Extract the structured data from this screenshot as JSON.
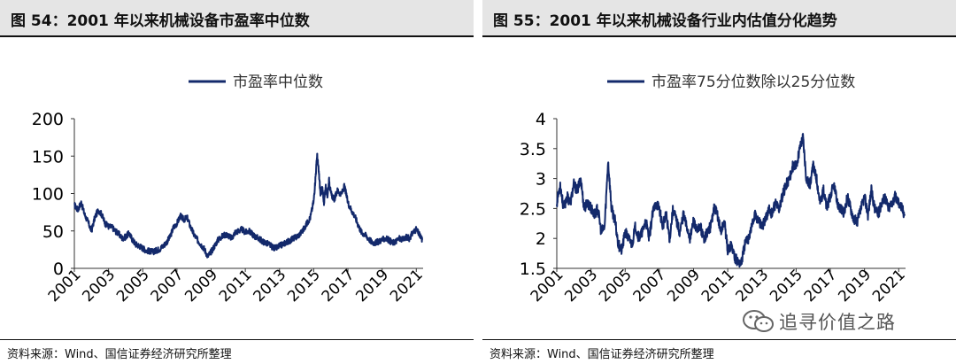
{
  "left": {
    "title": "图 54：2001 年以来机械设备市盈率中位数",
    "source": "资料来源：Wind、国信证券经济研究所整理"
  },
  "right": {
    "title": "图 55：2001 年以来机械设备行业内估值分化趋势",
    "source": "资料来源：Wind、国信证券经济研究所整理"
  },
  "watermark": {
    "text": "追寻价值之路",
    "icon": "wechat-icon"
  },
  "line_color": "#13296b",
  "chart_data": [
    {
      "type": "line",
      "legend_position": "top-center",
      "grid": false,
      "ylim": [
        0,
        200
      ],
      "yticks": [
        0,
        50,
        100,
        150,
        200
      ],
      "xlim": [
        2001,
        2021.4
      ],
      "xticks": [
        "2001",
        "2003",
        "2005",
        "2007",
        "2009",
        "2011",
        "2013",
        "2015",
        "2017",
        "2019",
        "2021"
      ],
      "series": [
        {
          "name": "市盈率中位数",
          "x": [
            2001.0,
            2001.2,
            2001.4,
            2001.6,
            2001.8,
            2002.0,
            2002.2,
            2002.4,
            2002.6,
            2002.8,
            2003.0,
            2003.2,
            2003.4,
            2003.6,
            2003.8,
            2004.0,
            2004.2,
            2004.4,
            2004.6,
            2004.8,
            2005.0,
            2005.2,
            2005.4,
            2005.6,
            2005.8,
            2006.0,
            2006.2,
            2006.4,
            2006.6,
            2006.8,
            2007.0,
            2007.2,
            2007.4,
            2007.6,
            2007.8,
            2008.0,
            2008.2,
            2008.4,
            2008.6,
            2008.8,
            2009.0,
            2009.2,
            2009.4,
            2009.6,
            2009.8,
            2010.0,
            2010.2,
            2010.4,
            2010.6,
            2010.8,
            2011.0,
            2011.2,
            2011.4,
            2011.6,
            2011.8,
            2012.0,
            2012.2,
            2012.4,
            2012.6,
            2012.8,
            2013.0,
            2013.2,
            2013.4,
            2013.6,
            2013.8,
            2014.0,
            2014.2,
            2014.4,
            2014.6,
            2014.8,
            2015.0,
            2015.1,
            2015.2,
            2015.3,
            2015.4,
            2015.5,
            2015.6,
            2015.7,
            2015.8,
            2015.9,
            2016.0,
            2016.2,
            2016.4,
            2016.6,
            2016.8,
            2017.0,
            2017.2,
            2017.4,
            2017.6,
            2017.8,
            2018.0,
            2018.2,
            2018.4,
            2018.6,
            2018.8,
            2019.0,
            2019.2,
            2019.4,
            2019.6,
            2019.8,
            2020.0,
            2020.2,
            2020.4,
            2020.6,
            2020.8,
            2021.0,
            2021.2,
            2021.35
          ],
          "values": [
            85,
            78,
            88,
            72,
            62,
            50,
            68,
            78,
            72,
            60,
            56,
            55,
            50,
            46,
            40,
            42,
            47,
            38,
            32,
            30,
            27,
            24,
            23,
            22,
            24,
            26,
            30,
            35,
            42,
            55,
            60,
            70,
            65,
            68,
            55,
            45,
            38,
            32,
            26,
            16,
            22,
            30,
            38,
            42,
            45,
            44,
            40,
            48,
            50,
            52,
            48,
            50,
            46,
            42,
            40,
            36,
            34,
            32,
            28,
            27,
            30,
            32,
            35,
            37,
            40,
            42,
            46,
            52,
            60,
            68,
            90,
            120,
            152,
            128,
            98,
            108,
            88,
            110,
            96,
            118,
            100,
            92,
            105,
            98,
            110,
            88,
            78,
            70,
            58,
            48,
            45,
            40,
            35,
            34,
            36,
            38,
            40,
            38,
            34,
            36,
            40,
            38,
            42,
            40,
            48,
            52,
            44,
            38
          ]
        }
      ]
    },
    {
      "type": "line",
      "legend_position": "top-center",
      "grid": false,
      "ylim": [
        1.5,
        4
      ],
      "yticks": [
        1.5,
        2,
        2.5,
        3,
        3.5,
        4
      ],
      "xlim": [
        2001,
        2021.4
      ],
      "xticks": [
        "2001",
        "2003",
        "2005",
        "2007",
        "2009",
        "2011",
        "2013",
        "2015",
        "2017",
        "2019",
        "2021"
      ],
      "series": [
        {
          "name": "市盈率75分位数除以25分位数",
          "x": [
            2001.0,
            2001.2,
            2001.4,
            2001.6,
            2001.8,
            2002.0,
            2002.2,
            2002.4,
            2002.6,
            2002.8,
            2003.0,
            2003.2,
            2003.4,
            2003.6,
            2003.8,
            2004.0,
            2004.2,
            2004.4,
            2004.6,
            2004.8,
            2005.0,
            2005.2,
            2005.4,
            2005.6,
            2005.8,
            2006.0,
            2006.2,
            2006.4,
            2006.6,
            2006.8,
            2007.0,
            2007.2,
            2007.4,
            2007.6,
            2007.8,
            2008.0,
            2008.2,
            2008.4,
            2008.6,
            2008.8,
            2009.0,
            2009.2,
            2009.4,
            2009.6,
            2009.8,
            2010.0,
            2010.2,
            2010.4,
            2010.6,
            2010.8,
            2011.0,
            2011.2,
            2011.4,
            2011.6,
            2011.8,
            2012.0,
            2012.2,
            2012.4,
            2012.6,
            2012.8,
            2013.0,
            2013.2,
            2013.4,
            2013.6,
            2013.8,
            2014.0,
            2014.2,
            2014.4,
            2014.6,
            2014.8,
            2015.0,
            2015.2,
            2015.4,
            2015.6,
            2015.8,
            2016.0,
            2016.2,
            2016.4,
            2016.6,
            2016.8,
            2017.0,
            2017.2,
            2017.4,
            2017.6,
            2017.8,
            2018.0,
            2018.2,
            2018.4,
            2018.6,
            2018.8,
            2019.0,
            2019.2,
            2019.4,
            2019.6,
            2019.8,
            2020.0,
            2020.2,
            2020.4,
            2020.6,
            2020.8,
            2021.0,
            2021.2,
            2021.35
          ],
          "values": [
            2.6,
            2.9,
            2.5,
            2.7,
            2.6,
            2.9,
            2.8,
            3.0,
            2.5,
            2.6,
            2.5,
            2.4,
            2.5,
            2.1,
            2.2,
            3.3,
            2.5,
            2.3,
            1.9,
            1.8,
            2.1,
            2.0,
            1.9,
            2.2,
            2.0,
            2.1,
            2.3,
            2.0,
            2.4,
            2.6,
            2.5,
            2.2,
            2.4,
            2.0,
            2.5,
            2.3,
            2.1,
            2.4,
            2.2,
            2.0,
            2.3,
            2.1,
            2.2,
            2.0,
            2.1,
            2.2,
            2.5,
            2.4,
            2.1,
            2.3,
            1.8,
            1.9,
            1.7,
            1.6,
            1.6,
            1.9,
            2.0,
            2.2,
            2.4,
            2.3,
            2.2,
            2.3,
            2.5,
            2.4,
            2.6,
            2.5,
            2.7,
            2.9,
            3.0,
            3.2,
            3.2,
            3.5,
            3.7,
            3.0,
            2.9,
            3.2,
            3.0,
            2.6,
            2.8,
            2.5,
            2.7,
            2.9,
            2.6,
            2.5,
            2.4,
            2.7,
            2.5,
            2.3,
            2.3,
            2.5,
            2.7,
            2.4,
            2.8,
            2.5,
            2.4,
            2.6,
            2.7,
            2.5,
            2.6,
            2.7,
            2.6,
            2.5,
            2.4
          ]
        }
      ]
    }
  ]
}
